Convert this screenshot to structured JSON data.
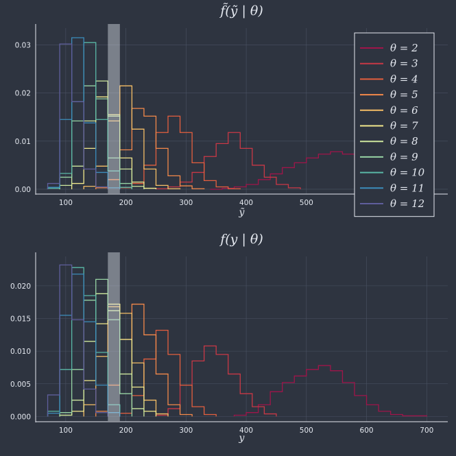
{
  "chart_data": [
    {
      "type": "step-histogram",
      "title": "f̃(ỹ | θ)",
      "xlabel": "ỹ",
      "ylabel": "",
      "xlim": [
        50,
        735
      ],
      "ylim": [
        -0.001,
        0.0335
      ],
      "x_ticks": [
        100,
        200,
        300,
        400,
        500,
        600,
        700
      ],
      "x_tick_labels": [
        "100",
        "200",
        "300",
        "400",
        "500",
        "",
        "700"
      ],
      "y_ticks": [
        0.0,
        0.01,
        0.02,
        0.03
      ],
      "y_tick_labels": [
        "0.00",
        "0.01",
        "0.02",
        "0.03"
      ],
      "grid": true,
      "highlight_band": {
        "x0": 170,
        "x1": 190
      },
      "legend_placement": "top-right",
      "series": [
        {
          "name": "θ = 2",
          "color": "#a0154a",
          "edges": [
            340,
            360,
            380,
            400,
            420,
            440,
            460,
            480,
            500,
            520,
            540,
            560,
            580,
            600,
            620,
            640,
            660,
            680,
            700
          ],
          "values": [
            0.0,
            0.0002,
            0.0005,
            0.001,
            0.002,
            0.0032,
            0.0045,
            0.0055,
            0.0065,
            0.0073,
            0.0078,
            0.0073,
            0.0062,
            0.0048,
            0.003,
            0.0015,
            0.0006,
            0.0002
          ]
        },
        {
          "name": "θ = 3",
          "color": "#c93846",
          "edges": [
            250,
            270,
            290,
            310,
            330,
            350,
            370,
            390,
            410,
            430,
            450,
            470,
            490
          ],
          "values": [
            0.0001,
            0.0005,
            0.0015,
            0.0035,
            0.0068,
            0.0095,
            0.0118,
            0.0085,
            0.005,
            0.0025,
            0.001,
            0.0003
          ]
        },
        {
          "name": "θ = 4",
          "color": "#e45f3e",
          "edges": [
            190,
            210,
            230,
            250,
            270,
            290,
            310,
            330,
            350,
            370,
            390
          ],
          "values": [
            0.0003,
            0.0012,
            0.005,
            0.0118,
            0.0152,
            0.0118,
            0.0055,
            0.0018,
            0.0005,
            0.0001
          ]
        },
        {
          "name": "θ = 5",
          "color": "#f4894a",
          "edges": [
            150,
            170,
            190,
            210,
            230,
            250,
            270,
            290,
            310,
            330
          ],
          "values": [
            0.0003,
            0.002,
            0.0082,
            0.0168,
            0.0152,
            0.0085,
            0.0028,
            0.0007,
            0.0001
          ]
        },
        {
          "name": "θ = 6",
          "color": "#f6be66",
          "edges": [
            130,
            150,
            170,
            190,
            210,
            230,
            250,
            270,
            290
          ],
          "values": [
            0.0006,
            0.0048,
            0.0142,
            0.0215,
            0.0125,
            0.0042,
            0.0008,
            0.0001
          ]
        },
        {
          "name": "θ = 7",
          "color": "#f3e98c",
          "edges": [
            110,
            130,
            150,
            170,
            190,
            210,
            230,
            250
          ],
          "values": [
            0.0012,
            0.0085,
            0.0192,
            0.0155,
            0.0065,
            0.0015,
            0.0002
          ]
        },
        {
          "name": "θ = 8",
          "color": "#cfe89e",
          "edges": [
            90,
            110,
            130,
            150,
            170,
            190,
            210,
            230
          ],
          "values": [
            0.0008,
            0.0048,
            0.0142,
            0.0225,
            0.0152,
            0.0042,
            0.0006
          ]
        },
        {
          "name": "θ = 9",
          "color": "#97d4a4",
          "edges": [
            90,
            110,
            130,
            150,
            170,
            190,
            210
          ],
          "values": [
            0.0025,
            0.0142,
            0.0215,
            0.0188,
            0.0065,
            0.0012
          ]
        },
        {
          "name": "θ = 10",
          "color": "#5ab8a6",
          "edges": [
            70,
            90,
            110,
            130,
            150,
            170,
            190,
            210
          ],
          "values": [
            0.0002,
            0.0033,
            0.0182,
            0.0305,
            0.0145,
            0.0038,
            0.0004
          ]
        },
        {
          "name": "θ = 11",
          "color": "#3c8dbc",
          "edges": [
            70,
            90,
            110,
            130,
            150,
            170,
            190
          ],
          "values": [
            0.0004,
            0.0145,
            0.0315,
            0.0138,
            0.0035,
            0.0003
          ]
        },
        {
          "name": "θ = 12",
          "color": "#5f5e9c",
          "edges": [
            70,
            90,
            110,
            130,
            150,
            170
          ],
          "values": [
            0.0012,
            0.0302,
            0.0182,
            0.0042,
            0.0005
          ]
        }
      ]
    },
    {
      "type": "step-histogram",
      "title": "f(y | θ)",
      "xlabel": "y",
      "ylabel": "",
      "xlim": [
        50,
        735
      ],
      "ylim": [
        -0.0008,
        0.0245
      ],
      "x_ticks": [
        100,
        200,
        300,
        400,
        500,
        600,
        700
      ],
      "x_tick_labels": [
        "100",
        "200",
        "300",
        "400",
        "500",
        "600",
        "700"
      ],
      "y_ticks": [
        0.0,
        0.005,
        0.01,
        0.015,
        0.02
      ],
      "y_tick_labels": [
        "0.000",
        "0.005",
        "0.010",
        "0.015",
        "0.020"
      ],
      "grid": true,
      "highlight_band": {
        "x0": 170,
        "x1": 190
      },
      "series": [
        {
          "name": "θ = 2",
          "color": "#a0154a",
          "edges": [
            380,
            400,
            420,
            440,
            460,
            480,
            500,
            520,
            540,
            560,
            580,
            600,
            620,
            640,
            660,
            680,
            700
          ],
          "values": [
            0.0002,
            0.0006,
            0.0018,
            0.0038,
            0.0052,
            0.0062,
            0.0072,
            0.0078,
            0.007,
            0.0052,
            0.0032,
            0.0018,
            0.0008,
            0.0003,
            0.0001,
            0.0001
          ]
        },
        {
          "name": "θ = 3",
          "color": "#c93846",
          "edges": [
            250,
            270,
            290,
            310,
            330,
            350,
            370,
            390,
            410,
            430,
            450
          ],
          "values": [
            0.0002,
            0.0012,
            0.0048,
            0.0085,
            0.0108,
            0.0095,
            0.0065,
            0.0035,
            0.0015,
            0.0004
          ]
        },
        {
          "name": "θ = 4",
          "color": "#e45f3e",
          "edges": [
            190,
            210,
            230,
            250,
            270,
            290,
            310,
            330,
            350
          ],
          "values": [
            0.0005,
            0.0032,
            0.0088,
            0.0132,
            0.0095,
            0.0048,
            0.0015,
            0.0003
          ]
        },
        {
          "name": "θ = 5",
          "color": "#f4894a",
          "edges": [
            150,
            170,
            190,
            210,
            230,
            250,
            270,
            290,
            310
          ],
          "values": [
            0.0008,
            0.0048,
            0.0118,
            0.0172,
            0.0125,
            0.0065,
            0.0018,
            0.0003
          ]
        },
        {
          "name": "θ = 6",
          "color": "#f6be66",
          "edges": [
            130,
            150,
            170,
            190,
            210,
            230,
            250,
            270
          ],
          "values": [
            0.0018,
            0.0092,
            0.0168,
            0.0158,
            0.0082,
            0.0025,
            0.0004
          ]
        },
        {
          "name": "θ = 7",
          "color": "#f3e98c",
          "edges": [
            90,
            110,
            130,
            150,
            170,
            190,
            210,
            230,
            250
          ],
          "values": [
            0.0002,
            0.0008,
            0.0055,
            0.0142,
            0.0172,
            0.0118,
            0.0045,
            0.0008
          ]
        },
        {
          "name": "θ = 8",
          "color": "#cfe89e",
          "edges": [
            90,
            110,
            130,
            150,
            170,
            190,
            210,
            230
          ],
          "values": [
            0.0002,
            0.0025,
            0.0115,
            0.0188,
            0.0162,
            0.0065,
            0.0012
          ]
        },
        {
          "name": "θ = 9",
          "color": "#97d4a4",
          "edges": [
            90,
            110,
            130,
            150,
            170,
            190,
            210
          ],
          "values": [
            0.0006,
            0.0072,
            0.0178,
            0.021,
            0.0148,
            0.0035
          ]
        },
        {
          "name": "θ = 10",
          "color": "#5ab8a6",
          "edges": [
            70,
            90,
            110,
            130,
            150,
            170,
            190
          ],
          "values": [
            0.0008,
            0.0072,
            0.0228,
            0.0185,
            0.0098,
            0.0018
          ]
        },
        {
          "name": "θ = 11",
          "color": "#3c8dbc",
          "edges": [
            70,
            90,
            110,
            130,
            150,
            170,
            190
          ],
          "values": [
            0.0005,
            0.0155,
            0.0218,
            0.0145,
            0.0048,
            0.0006
          ]
        },
        {
          "name": "θ = 12",
          "color": "#5f5e9c",
          "edges": [
            70,
            90,
            110,
            130,
            150,
            170
          ],
          "values": [
            0.0033,
            0.0232,
            0.0148,
            0.0042,
            0.0006
          ]
        }
      ]
    }
  ]
}
